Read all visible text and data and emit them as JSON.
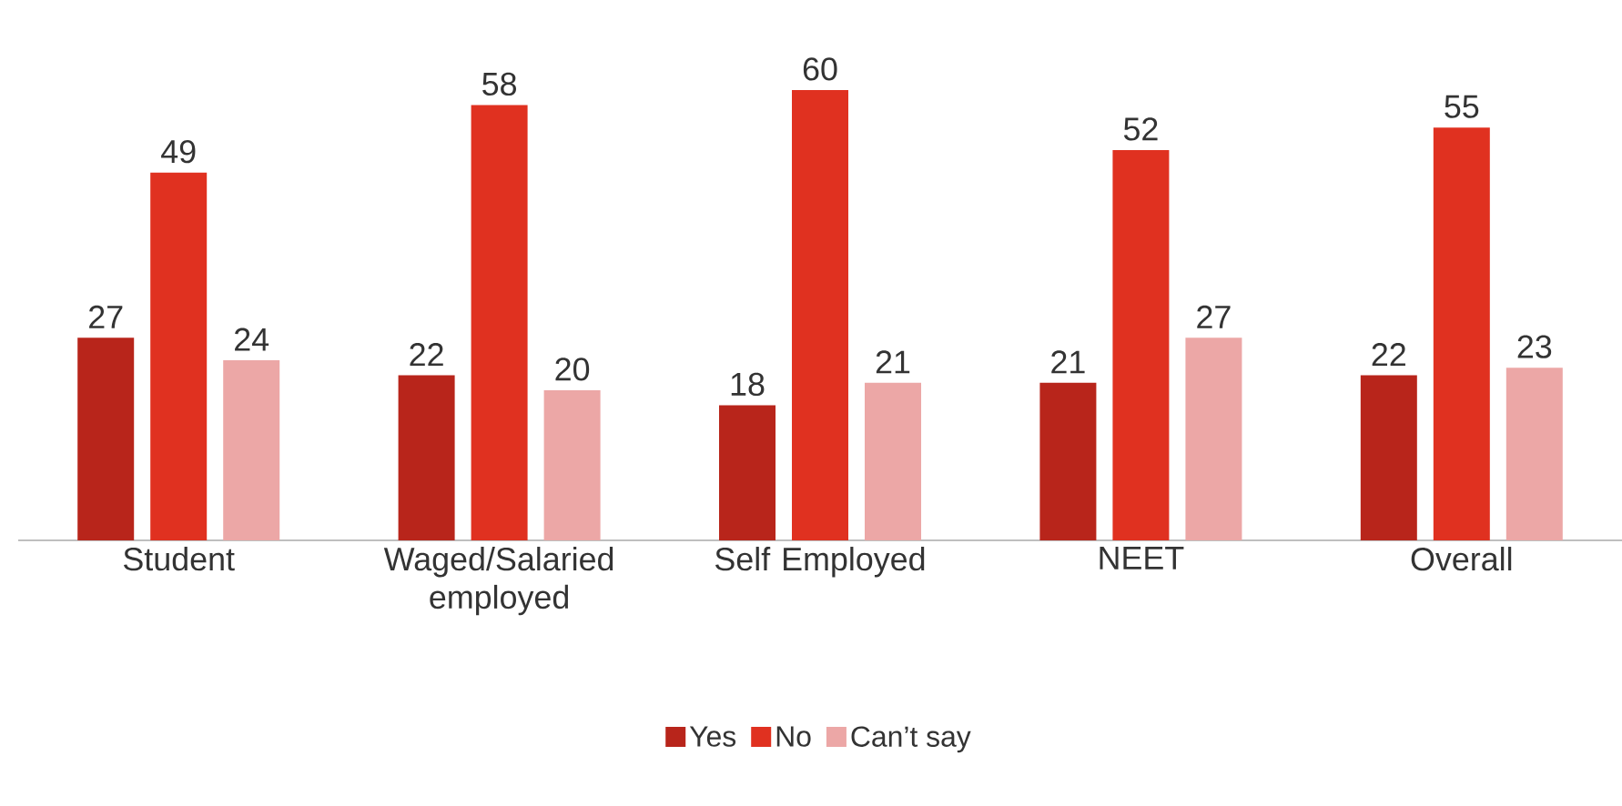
{
  "chart_data": {
    "type": "bar",
    "categories": [
      "Student",
      "Waged/Salaried employed",
      "Self Employed",
      "NEET",
      "Overall"
    ],
    "series": [
      {
        "name": "Yes",
        "color": "#b8251b",
        "values": [
          27,
          22,
          18,
          21,
          22
        ]
      },
      {
        "name": "No",
        "color": "#e03120",
        "values": [
          49,
          58,
          60,
          52,
          55
        ]
      },
      {
        "name": "Can’t say",
        "color": "#eca7a6",
        "values": [
          24,
          20,
          21,
          27,
          23
        ]
      }
    ],
    "data_labels": true,
    "legend": "bottom"
  }
}
